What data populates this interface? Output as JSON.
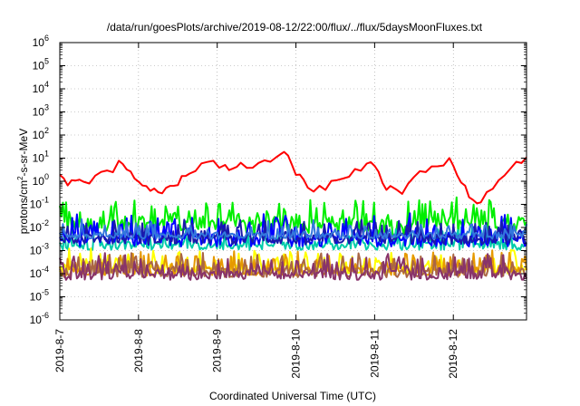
{
  "chart_data": {
    "type": "line",
    "title": "/data/run/goesPlots/archive/2019-08-12/22:00/flux/../flux/5daysMoonFluxes.txt",
    "xlabel": "Coordinated Universal Time (UTC)",
    "ylabel_parts": [
      "protons/cm",
      "2",
      "-s-sr-MeV"
    ],
    "y_scale": "log",
    "ylim": [
      1e-06,
      1000000.0
    ],
    "x_ticks": [
      "2019-8-7",
      "2019-8-8",
      "2019-8-9",
      "2019-8-10",
      "2019-8-11",
      "2019-8-12"
    ],
    "xlim_days": [
      0,
      5.93
    ],
    "y_ticks": [
      {
        "base": "10",
        "exp": "-6"
      },
      {
        "base": "10",
        "exp": "-5"
      },
      {
        "base": "10",
        "exp": "-4"
      },
      {
        "base": "10",
        "exp": "-3"
      },
      {
        "base": "10",
        "exp": "-2"
      },
      {
        "base": "10",
        "exp": "-1"
      },
      {
        "base": "10",
        "exp": "0"
      },
      {
        "base": "10",
        "exp": "1"
      },
      {
        "base": "10",
        "exp": "2"
      },
      {
        "base": "10",
        "exp": "3"
      },
      {
        "base": "10",
        "exp": "4"
      },
      {
        "base": "10",
        "exp": "5"
      },
      {
        "base": "10",
        "exp": "6"
      }
    ],
    "grid": true,
    "series": [
      {
        "color": "#ff0000",
        "x": [
          0,
          0.1,
          0.2,
          0.3,
          0.45,
          0.6,
          0.75,
          0.85,
          0.95,
          1.05,
          1.15,
          1.25,
          1.35,
          1.45,
          1.55,
          1.65,
          1.8,
          1.95,
          2.1,
          2.2,
          2.3,
          2.45,
          2.6,
          2.75,
          2.85,
          2.95,
          3.05,
          3.15,
          3.3,
          3.45,
          3.6,
          3.75,
          3.9,
          4.0,
          4.1,
          4.2,
          4.35,
          4.5,
          4.65,
          4.8,
          4.95,
          5.05,
          5.15,
          5.25,
          5.35,
          5.5,
          5.65,
          5.8,
          5.93
        ],
        "y": [
          1.5,
          0.9,
          1.2,
          0.8,
          1.8,
          3,
          6,
          3,
          1.5,
          0.9,
          0.5,
          0.3,
          0.4,
          0.8,
          1.5,
          2,
          5,
          8,
          4,
          3,
          5,
          3,
          8,
          12,
          18,
          5,
          2,
          0.6,
          0.5,
          0.8,
          1.5,
          3,
          6,
          5,
          1,
          0.5,
          0.4,
          1.2,
          3,
          6,
          8,
          2,
          0.5,
          0.2,
          0.12,
          0.6,
          2,
          6,
          9
        ]
      },
      {
        "color": "#00ee00",
        "base": 0.012,
        "spread": 0.8,
        "amp": 7,
        "p": 0.35
      },
      {
        "color": "#00ccaa",
        "base": 0.0016,
        "spread": 0.35,
        "amp": 4,
        "p": 0.25
      },
      {
        "color": "#0000ff",
        "base": 0.0028,
        "spread": 0.55,
        "amp": 7,
        "p": 0.3
      },
      {
        "color": "#1a1aaa",
        "base": 0.0032,
        "spread": 0.45,
        "amp": 4,
        "p": 0.25
      },
      {
        "color": "#3377dd",
        "base": 0.0045,
        "spread": 0.3,
        "amp": 3,
        "p": 0.2
      },
      {
        "color": "#ffff00",
        "base": 0.00016,
        "spread": 0.4,
        "amp": 4,
        "p": 0.3
      },
      {
        "color": "#e69900",
        "base": 0.00013,
        "spread": 0.4,
        "amp": 4,
        "p": 0.3
      },
      {
        "color": "#aa6644",
        "base": 0.00011,
        "spread": 0.4,
        "amp": 4,
        "p": 0.3
      },
      {
        "color": "#88336a",
        "base": 8.5e-05,
        "spread": 0.4,
        "amp": 5,
        "p": 0.3
      }
    ]
  }
}
